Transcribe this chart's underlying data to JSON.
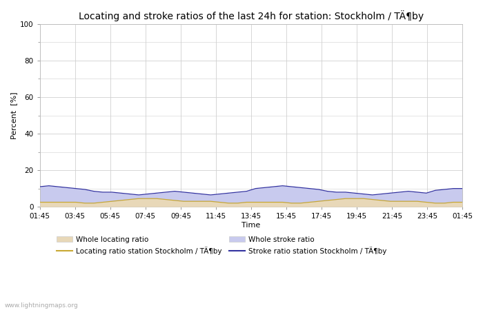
{
  "title": "Locating and stroke ratios of the last 24h for station: Stockholm / TÄ¶by",
  "xlabel": "Time",
  "ylabel": "Percent  [%]",
  "ylim": [
    0,
    100
  ],
  "yticks": [
    0,
    20,
    40,
    60,
    80,
    100
  ],
  "yticks_minor": [
    10,
    30,
    50,
    70,
    90
  ],
  "time_labels": [
    "01:45",
    "03:45",
    "05:45",
    "07:45",
    "09:45",
    "11:45",
    "13:45",
    "15:45",
    "17:45",
    "19:45",
    "21:45",
    "23:45",
    "01:45"
  ],
  "background_color": "#ffffff",
  "grid_color": "#d0d0d0",
  "watermark": "www.lightningmaps.org",
  "whole_locating_fill_color": "#e8d8b8",
  "whole_stroke_fill_color": "#c8caee",
  "locating_line_color": "#c8a832",
  "stroke_line_color": "#3232a0",
  "whole_locating_ratio": [
    2.5,
    2.5,
    2.5,
    2.5,
    2.5,
    2.0,
    2.0,
    2.5,
    3.0,
    3.5,
    4.0,
    4.5,
    4.5,
    4.5,
    4.0,
    3.5,
    3.0,
    3.0,
    3.0,
    3.0,
    2.5,
    2.0,
    2.0,
    2.5,
    2.5,
    2.5,
    2.5,
    2.5,
    2.0,
    2.0,
    2.5,
    3.0,
    3.5,
    4.0,
    4.5,
    4.5,
    4.5,
    4.0,
    3.5,
    3.0,
    3.0,
    3.0,
    3.0,
    2.5,
    2.0,
    2.0,
    2.5,
    2.5
  ],
  "whole_stroke_ratio": [
    11,
    11.5,
    11,
    10.5,
    10,
    9.5,
    8.5,
    8,
    8,
    7.5,
    7,
    6.5,
    7,
    7.5,
    8,
    8.5,
    8,
    7.5,
    7,
    6.5,
    7,
    7.5,
    8,
    8.5,
    10,
    10.5,
    11,
    11.5,
    11,
    10.5,
    10,
    9.5,
    8.5,
    8,
    8,
    7.5,
    7,
    6.5,
    7,
    7.5,
    8,
    8.5,
    8,
    7.5,
    9,
    9.5,
    10,
    10
  ],
  "locating_station_ratio": [
    2.5,
    2.5,
    2.5,
    2.5,
    2.5,
    2.0,
    2.0,
    2.5,
    3.0,
    3.5,
    4.0,
    4.5,
    4.5,
    4.5,
    4.0,
    3.5,
    3.0,
    3.0,
    3.0,
    3.0,
    2.5,
    2.0,
    2.0,
    2.5,
    2.5,
    2.5,
    2.5,
    2.5,
    2.0,
    2.0,
    2.5,
    3.0,
    3.5,
    4.0,
    4.5,
    4.5,
    4.5,
    4.0,
    3.5,
    3.0,
    3.0,
    3.0,
    3.0,
    2.5,
    2.0,
    2.0,
    2.5,
    2.5
  ],
  "stroke_station_ratio": [
    11,
    11.5,
    11,
    10.5,
    10,
    9.5,
    8.5,
    8,
    8,
    7.5,
    7,
    6.5,
    7,
    7.5,
    8,
    8.5,
    8,
    7.5,
    7,
    6.5,
    7,
    7.5,
    8,
    8.5,
    10,
    10.5,
    11,
    11.5,
    11,
    10.5,
    10,
    9.5,
    8.5,
    8,
    8,
    7.5,
    7,
    6.5,
    7,
    7.5,
    8,
    8.5,
    8,
    7.5,
    9,
    9.5,
    10,
    10
  ],
  "n_points": 48,
  "title_fontsize": 10,
  "label_fontsize": 8,
  "tick_fontsize": 7.5,
  "legend_fontsize": 7.5
}
